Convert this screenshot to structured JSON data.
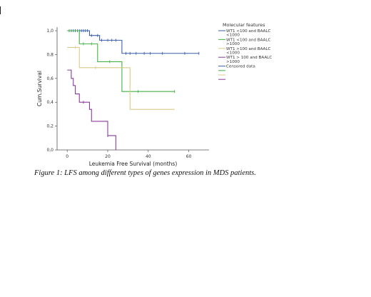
{
  "caption": "Figure 1: LFS among different types of genes expression in MDS patients.",
  "chart_data": {
    "type": "line",
    "subtype": "kaplan-meier step",
    "title": "",
    "xlabel": "Leukemia Free Survival (months)",
    "ylabel": "Cum.Survival",
    "xlim": [
      -5,
      70
    ],
    "ylim": [
      0,
      1.03
    ],
    "x_ticks": [
      0,
      20,
      40,
      60
    ],
    "y_ticks": [
      0.0,
      0.2,
      0.4,
      0.6,
      0.8,
      1.0
    ],
    "y_tick_labels": [
      "0,0",
      "0,2",
      "0,4",
      "0,6",
      "0,8",
      "1,0"
    ],
    "grid": false,
    "legend": {
      "title": "Molecular features",
      "placement": "right",
      "entries": [
        [
          "WT1 <100 and BAALC",
          "<1000"
        ],
        [
          "WT1 <100 and BAALC",
          ">1000"
        ],
        [
          "WT1 >100 and BAALC",
          "<1000"
        ],
        [
          "WT1 > 100 and BAALC",
          ">1000"
        ],
        [
          "Censored data"
        ],
        [
          ""
        ],
        [
          ""
        ],
        [
          ""
        ]
      ],
      "marker_colors": [
        "#3a5fa8",
        "#45b145",
        "#d8cc8a",
        "#8a3c9c",
        "#3a5fa8",
        "#45b145",
        "#d8cc8a",
        "#8a3c9c"
      ]
    },
    "series": [
      {
        "color": "#3a5fa8",
        "steps": [
          [
            0,
            1.0
          ],
          [
            11,
            0.96
          ],
          [
            16,
            0.92
          ],
          [
            27,
            0.81
          ],
          [
            65,
            0.81
          ]
        ],
        "censored": [
          1,
          2,
          3,
          4,
          5,
          6,
          7,
          8,
          9,
          10,
          12,
          15,
          17,
          20,
          22,
          24,
          29,
          31,
          34,
          38,
          41,
          47,
          58,
          65
        ]
      },
      {
        "color": "#45b145",
        "steps": [
          [
            0,
            1.0
          ],
          [
            6,
            0.89
          ],
          [
            15,
            0.74
          ],
          [
            27,
            0.49
          ],
          [
            53,
            0.49
          ]
        ],
        "censored": [
          1,
          8,
          12,
          21,
          35,
          53
        ]
      },
      {
        "color": "#d8cc8a",
        "steps": [
          [
            0,
            0.86
          ],
          [
            6,
            0.69
          ],
          [
            17,
            0.69
          ],
          [
            31,
            0.34
          ],
          [
            53,
            0.34
          ]
        ],
        "censored": [
          4,
          14
        ]
      },
      {
        "color": "#8a3c9c",
        "steps": [
          [
            0,
            0.67
          ],
          [
            2,
            0.6
          ],
          [
            3,
            0.54
          ],
          [
            4,
            0.47
          ],
          [
            6,
            0.4
          ],
          [
            11,
            0.34
          ],
          [
            12,
            0.24
          ],
          [
            20,
            0.12
          ],
          [
            24,
            0.0
          ]
        ],
        "censored": [
          8,
          20
        ]
      }
    ]
  }
}
